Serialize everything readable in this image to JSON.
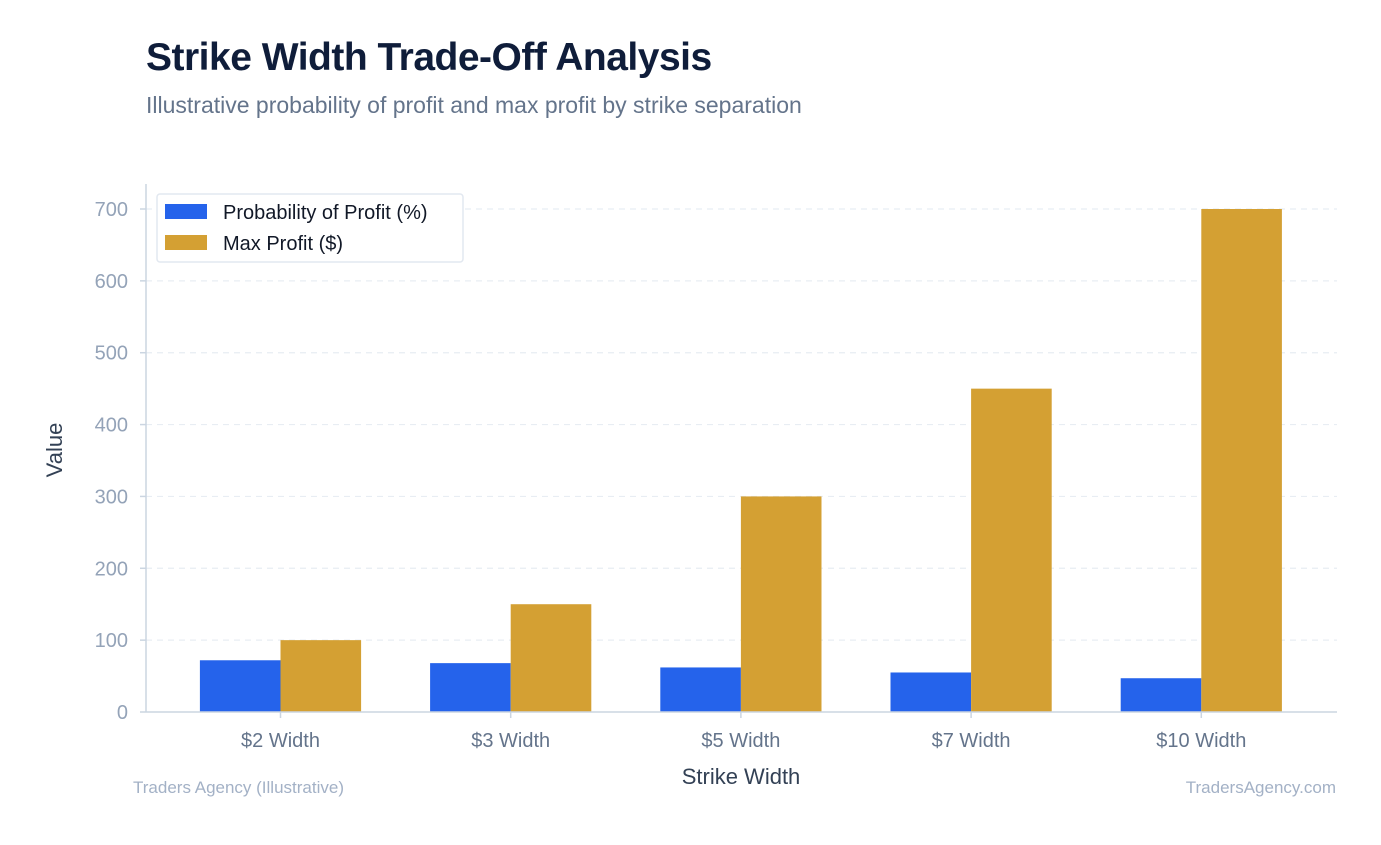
{
  "header": {
    "title": "Strike Width Trade-Off Analysis",
    "subtitle": "Illustrative probability of profit and max profit by strike separation"
  },
  "footer": {
    "left": "Traders Agency (Illustrative)",
    "right": "TradersAgency.com"
  },
  "chart_data": {
    "type": "bar",
    "title": "Strike Width Trade-Off Analysis",
    "subtitle": "Illustrative probability of profit and max profit by strike separation",
    "xlabel": "Strike Width",
    "ylabel": "Value",
    "categories": [
      "$2 Width",
      "$3 Width",
      "$5 Width",
      "$7 Width",
      "$10 Width"
    ],
    "series": [
      {
        "name": "Probability of Profit (%)",
        "color": "#2563eb",
        "values": [
          72,
          68,
          62,
          55,
          47
        ]
      },
      {
        "name": "Max Profit ($)",
        "color": "#d4a033",
        "values": [
          100,
          150,
          300,
          450,
          700
        ]
      }
    ],
    "ylim": [
      0,
      735
    ],
    "yticks": [
      0,
      100,
      200,
      300,
      400,
      500,
      600,
      700
    ],
    "grid": true,
    "legend": "top-left"
  }
}
